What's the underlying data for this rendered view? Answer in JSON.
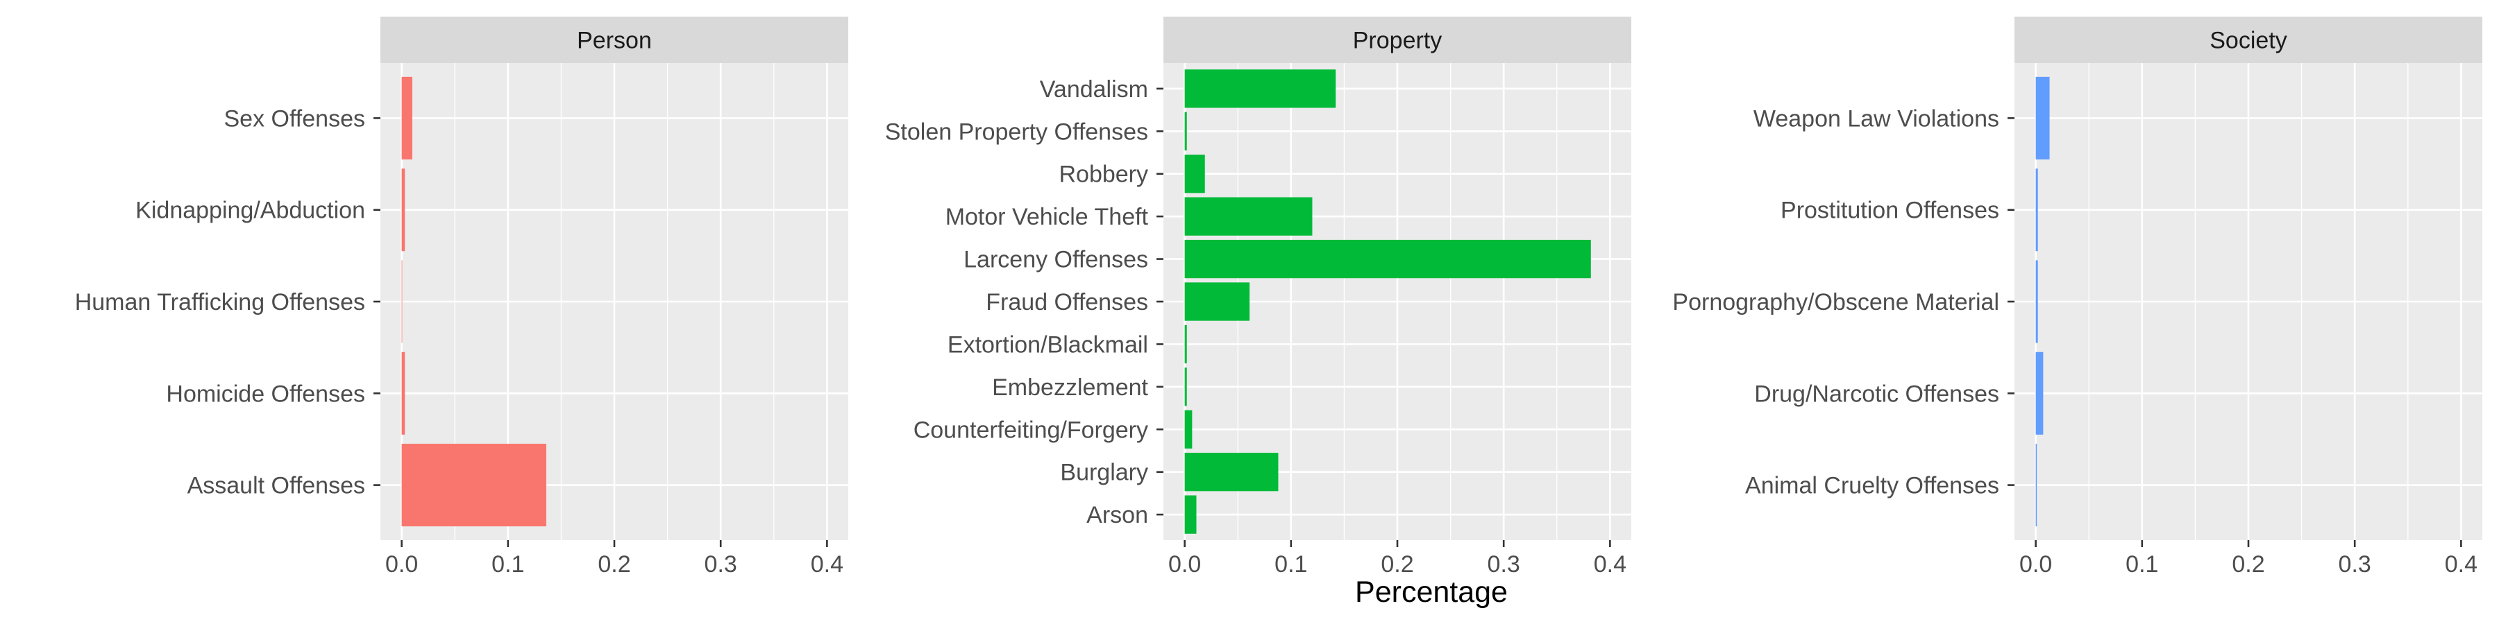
{
  "chart_data": {
    "type": "bar",
    "orientation": "horizontal",
    "facets": [
      "Person",
      "Property",
      "Society"
    ],
    "xlabel": "Percentage",
    "ylabel": "",
    "xlim": [
      0,
      0.4
    ],
    "x_ticks": [
      "0.0",
      "0.1",
      "0.2",
      "0.3",
      "0.4"
    ],
    "grid": true,
    "legend": "none",
    "panels": [
      {
        "facet": "Person",
        "color": "#F8766D",
        "categories": [
          "Sex Offenses",
          "Kidnapping/Abduction",
          "Human Trafficking Offenses",
          "Homicide Offenses",
          "Assault Offenses"
        ],
        "values": [
          0.01,
          0.003,
          0.0005,
          0.003,
          0.136
        ]
      },
      {
        "facet": "Property",
        "color": "#00BA38",
        "categories": [
          "Vandalism",
          "Stolen Property Offenses",
          "Robbery",
          "Motor Vehicle Theft",
          "Larceny Offenses",
          "Fraud Offenses",
          "Extortion/Blackmail",
          "Embezzlement",
          "Counterfeiting/Forgery",
          "Burglary",
          "Arson"
        ],
        "values": [
          0.142,
          0.002,
          0.019,
          0.12,
          0.382,
          0.061,
          0.002,
          0.002,
          0.007,
          0.088,
          0.011
        ]
      },
      {
        "facet": "Society",
        "color": "#619CFF",
        "categories": [
          "Weapon Law Violations",
          "Prostitution Offenses",
          "Pornography/Obscene Material",
          "Drug/Narcotic Offenses",
          "Animal Cruelty Offenses"
        ],
        "values": [
          0.013,
          0.002,
          0.002,
          0.007,
          0.001
        ]
      }
    ]
  }
}
